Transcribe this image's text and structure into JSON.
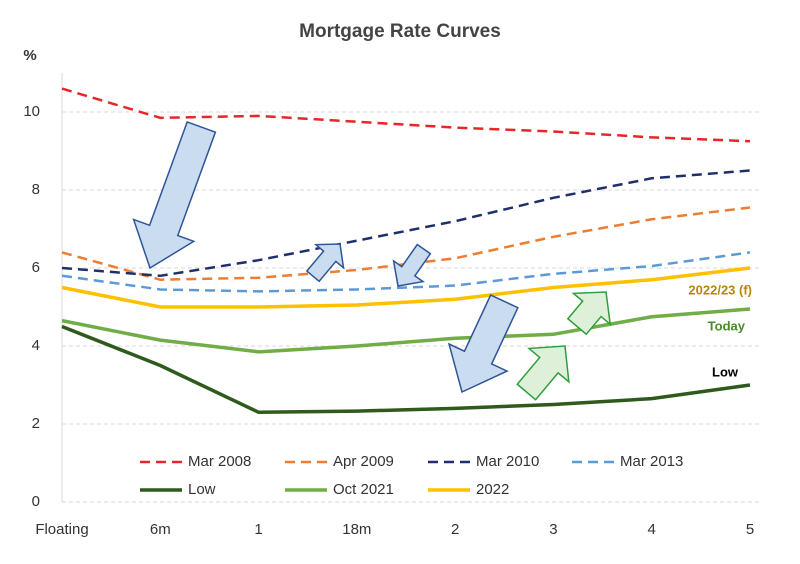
{
  "chart_data": {
    "type": "line",
    "title": "Mortgage Rate Curves",
    "y_label": "%",
    "categories": [
      "Floating",
      "6m",
      "1",
      "18m",
      "2",
      "3",
      "4",
      "5"
    ],
    "ylim": [
      0,
      11
    ],
    "yticks": [
      0,
      2,
      4,
      6,
      8,
      10
    ],
    "grid": true,
    "series": [
      {
        "name": "Mar 2008",
        "color": "#e8262a",
        "dashed": true,
        "values": [
          10.6,
          9.85,
          9.9,
          9.75,
          9.6,
          9.5,
          9.35,
          9.25
        ]
      },
      {
        "name": "Apr 2009",
        "color": "#ed7d31",
        "dashed": true,
        "values": [
          6.4,
          5.7,
          5.75,
          5.95,
          6.25,
          6.8,
          7.25,
          7.55
        ]
      },
      {
        "name": "Mar 2010",
        "color": "#1f2f6b",
        "dashed": true,
        "values": [
          6.0,
          5.8,
          6.2,
          6.7,
          7.2,
          7.8,
          8.3,
          8.5
        ]
      },
      {
        "name": "Mar 2013",
        "color": "#5b9bd5",
        "dashed": true,
        "values": [
          5.8,
          5.45,
          5.4,
          5.45,
          5.55,
          5.85,
          6.05,
          6.4
        ]
      },
      {
        "name": "Low",
        "color": "#2e5a1c",
        "dashed": false,
        "values": [
          4.5,
          3.5,
          2.3,
          2.33,
          2.4,
          2.5,
          2.65,
          3.0
        ]
      },
      {
        "name": "Oct 2021",
        "color": "#70ad47",
        "dashed": false,
        "values": [
          4.65,
          4.15,
          3.85,
          4.0,
          4.2,
          4.3,
          4.75,
          4.95
        ]
      },
      {
        "name": "2022",
        "color": "#ffc000",
        "dashed": false,
        "values": [
          5.5,
          5.0,
          5.0,
          5.05,
          5.2,
          5.5,
          5.7,
          6.0
        ]
      }
    ],
    "annotations": [
      {
        "text": "2022/23 (f)",
        "color": "#b8860b"
      },
      {
        "text": "Today",
        "color": "#4a8a2a"
      },
      {
        "text": "Low",
        "color": "#000000"
      }
    ]
  }
}
